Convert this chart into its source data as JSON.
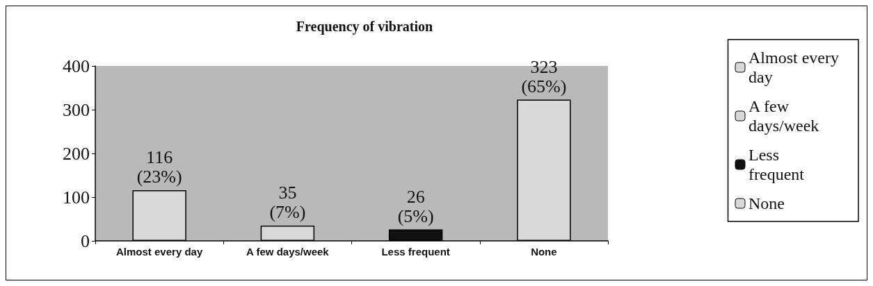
{
  "chart_data": {
    "type": "bar",
    "title": "Frequency of vibration",
    "categories": [
      "Almost every day",
      "A few days/week",
      "Less frequent",
      "None"
    ],
    "series": [
      {
        "name": "Almost every day",
        "color": "#d8d8d8",
        "values": [
          116,
          null,
          null,
          null
        ],
        "value_labels": [
          "116\n(23%)",
          null,
          null,
          null
        ]
      },
      {
        "name": "A few days/week",
        "color": "#d8d8d8",
        "values": [
          null,
          35,
          null,
          null
        ],
        "value_labels": [
          null,
          "35\n(7%)",
          null,
          null
        ]
      },
      {
        "name": "Less frequent",
        "color": "#111111",
        "values": [
          null,
          null,
          26,
          null
        ],
        "value_labels": [
          null,
          null,
          "26\n(5%)",
          null
        ]
      },
      {
        "name": "None",
        "color": "#d8d8d8",
        "values": [
          null,
          null,
          null,
          323
        ],
        "value_labels": [
          null,
          null,
          null,
          "323\n(65%)"
        ]
      }
    ],
    "ylim": [
      0,
      400
    ],
    "yticks": [
      0,
      100,
      200,
      300,
      400
    ],
    "grid": false,
    "legend": "right"
  }
}
